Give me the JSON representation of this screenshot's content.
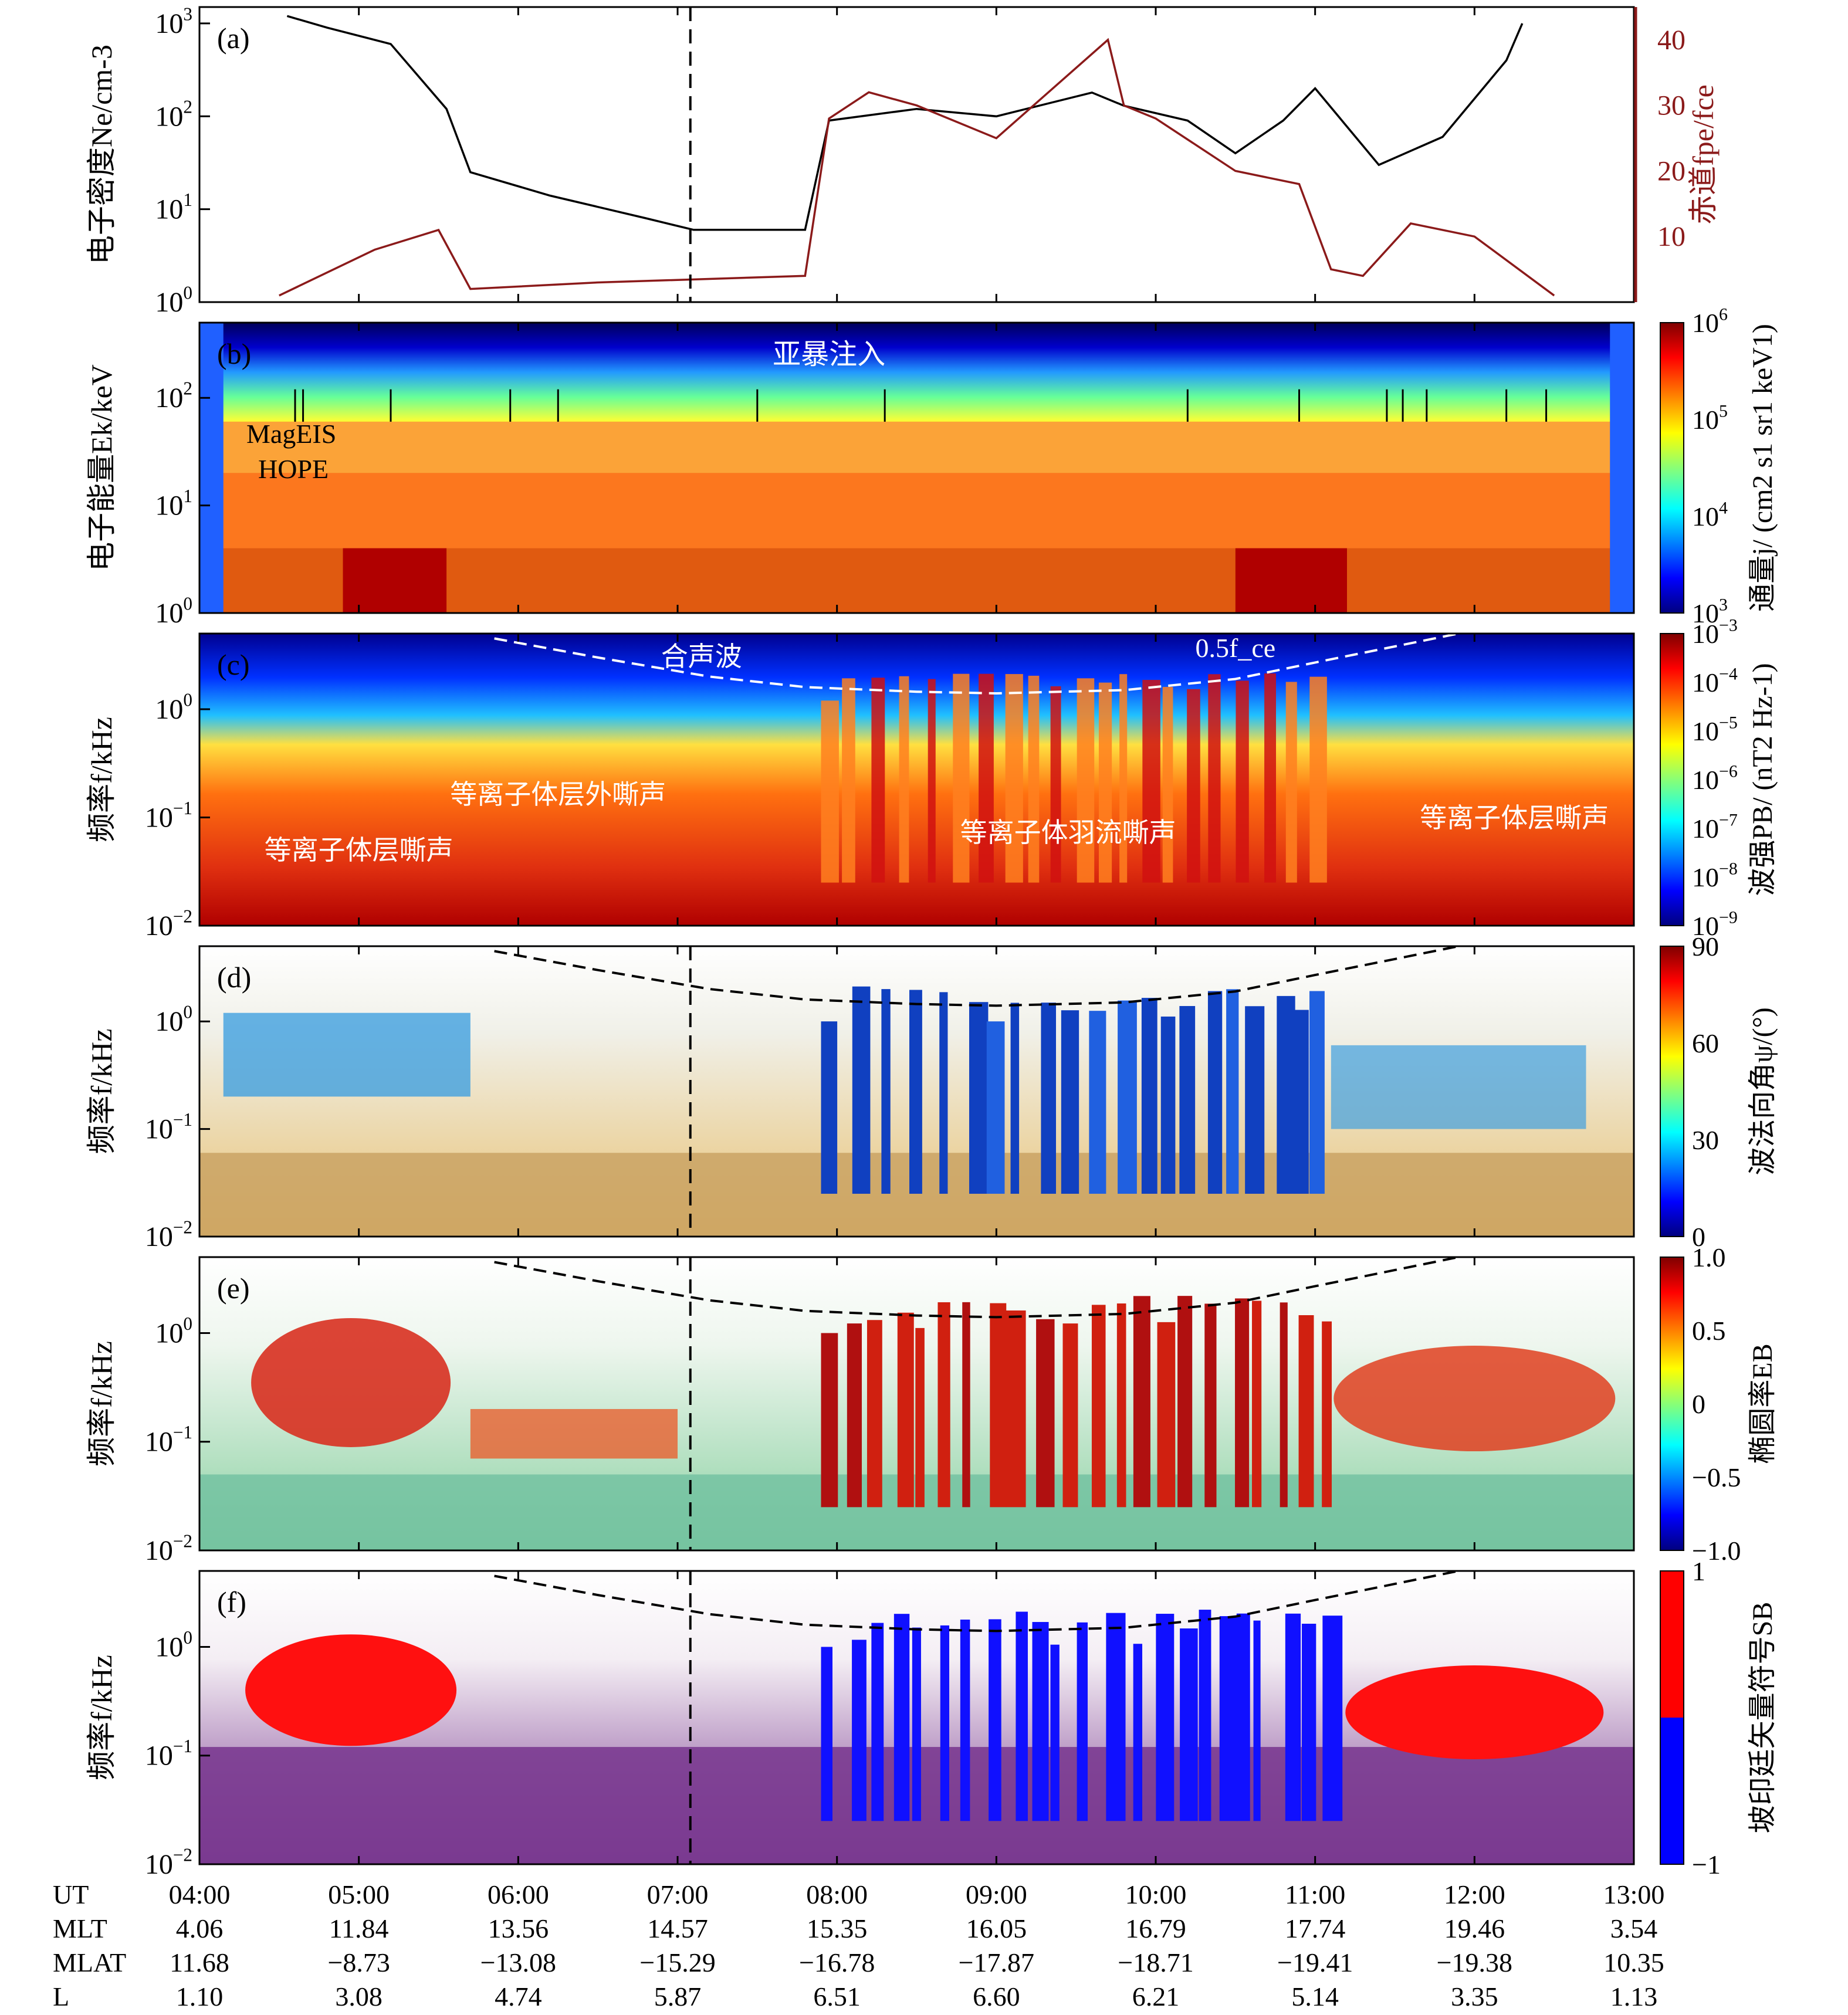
{
  "figure": {
    "panels": [
      {
        "tag": "(a)",
        "ylabel": "电子密度N_e/cm^-3",
        "ylabel_right": "赤道f_pe/f_ce",
        "yticks": [
          "10^0",
          "10^1",
          "10^2",
          "10^3"
        ],
        "yticks_right": [
          "10",
          "20",
          "30",
          "40"
        ]
      },
      {
        "tag": "(b)",
        "ylabel": "电子能量E_k/keV",
        "yticks": [
          "10^0",
          "10^1",
          "10^2"
        ],
        "cbar_label": "通量j/ (cm^2 s^1 sr^1 keV^1)",
        "cbar_ticks": [
          "10^6",
          "10^5",
          "10^4",
          "10^3"
        ],
        "annotations": [
          "亚暴注入",
          "MagEIS",
          "HOPE"
        ]
      },
      {
        "tag": "(c)",
        "ylabel": "频率f/kHz",
        "yticks": [
          "10^0",
          "10^-1",
          "10^-2"
        ],
        "cbar_label": "波强P_B/ (nT^2 Hz^-1)",
        "cbar_ticks": [
          "10^-3",
          "10^-4",
          "10^-5",
          "10^-6",
          "10^-7",
          "10^-8",
          "10^-9"
        ],
        "annotations": [
          "合声波",
          "0.5f_ce",
          "等离子体层外嘶声",
          "等离子体层嘶声",
          "等离子体羽流嘶声",
          "等离子体层嘶声"
        ]
      },
      {
        "tag": "(d)",
        "ylabel": "频率f/kHz",
        "yticks": [
          "10^0",
          "10^-1",
          "10^-2"
        ],
        "cbar_label": "波法向角ψ/(°)",
        "cbar_ticks": [
          "90",
          "60",
          "30",
          "0"
        ]
      },
      {
        "tag": "(e)",
        "ylabel": "频率f/kHz",
        "yticks": [
          "10^0",
          "10^-1",
          "10^-2"
        ],
        "cbar_label": "椭圆率E_B",
        "cbar_ticks": [
          "1.0",
          "0.5",
          "0",
          "−0.5",
          "−1.0"
        ]
      },
      {
        "tag": "(f)",
        "ylabel": "频率f/kHz",
        "yticks": [
          "10^0",
          "10^-1",
          "10^-2"
        ],
        "cbar_label": "坡印廷矢量符号S_B",
        "cbar_ticks": [
          "1",
          "−1"
        ]
      }
    ],
    "xaxis": {
      "rows": [
        {
          "label": "UT",
          "values": [
            "04:00",
            "05:00",
            "06:00",
            "07:00",
            "08:00",
            "09:00",
            "10:00",
            "11:00",
            "12:00",
            "13:00"
          ]
        },
        {
          "label": "MLT",
          "values": [
            "4.06",
            "11.84",
            "13.56",
            "14.57",
            "15.35",
            "16.05",
            "16.79",
            "17.74",
            "19.46",
            "3.54"
          ]
        },
        {
          "label": "MLAT",
          "values": [
            "11.68",
            "−8.73",
            "−13.08",
            "−15.29",
            "−16.78",
            "−17.87",
            "−18.71",
            "−19.41",
            "−19.38",
            "10.35"
          ]
        },
        {
          "label": "L",
          "values": [
            "1.10",
            "3.08",
            "4.74",
            "5.87",
            "6.51",
            "6.60",
            "6.21",
            "5.14",
            "3.35",
            "1.13"
          ]
        }
      ]
    }
  },
  "chart_data": {
    "type": "multi-panel time series / spectrogram",
    "x_range_ut_hours": [
      4,
      13
    ],
    "vertical_marker_ut": 7.08,
    "density_ne": {
      "ut": [
        4.55,
        4.8,
        5.2,
        5.55,
        5.7,
        6.2,
        6.8,
        7.1,
        7.5,
        7.8,
        7.95,
        8.5,
        9.0,
        9.6,
        9.8,
        10.2,
        10.5,
        10.8,
        11.0,
        11.4,
        11.8,
        12.2,
        12.3
      ],
      "ne": [
        1200,
        900,
        600,
        120,
        25,
        14,
        8,
        6,
        6,
        6,
        90,
        120,
        100,
        180,
        130,
        90,
        40,
        90,
        200,
        30,
        60,
        400,
        1000
      ]
    },
    "fpe_fce": {
      "ut": [
        4.5,
        5.1,
        5.5,
        5.7,
        6.5,
        7.8,
        7.95,
        8.2,
        8.5,
        9.0,
        9.7,
        9.8,
        10.0,
        10.5,
        10.9,
        11.1,
        11.3,
        11.6,
        12.0,
        12.5
      ],
      "ratio": [
        1,
        8,
        11,
        2,
        3,
        4,
        28,
        32,
        30,
        25,
        40,
        30,
        28,
        20,
        18,
        5,
        4,
        12,
        10,
        1
      ]
    },
    "half_fce_kHz": {
      "ut": [
        5.85,
        6.5,
        7.2,
        7.8,
        8.5,
        9.0,
        9.8,
        10.5,
        11.0,
        11.5,
        11.9
      ],
      "f": [
        4.5,
        3.0,
        2.0,
        1.6,
        1.45,
        1.4,
        1.5,
        1.9,
        2.7,
        3.8,
        5.0
      ]
    },
    "panel_ranges": {
      "a": {
        "ylim": [
          1,
          1500
        ],
        "yscale": "log",
        "ylim_right": [
          0,
          45
        ]
      },
      "b": {
        "ylim": [
          1,
          500
        ],
        "yscale": "log"
      },
      "c": {
        "ylim": [
          0.01,
          5
        ],
        "yscale": "log"
      },
      "d": {
        "ylim": [
          0.01,
          5
        ],
        "yscale": "log"
      },
      "e": {
        "ylim": [
          0.01,
          5
        ],
        "yscale": "log"
      },
      "f": {
        "ylim": [
          0.01,
          5
        ],
        "yscale": "log"
      }
    }
  }
}
